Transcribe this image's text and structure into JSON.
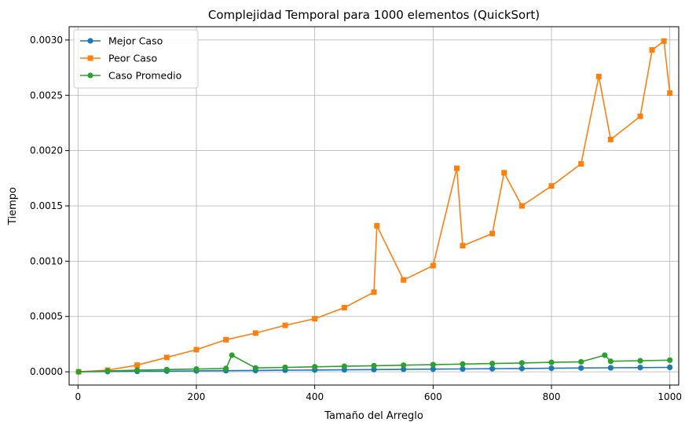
{
  "chart_data": {
    "type": "line",
    "title": "Complejidad Temporal para 1000 elementos (QuickSort)",
    "xlabel": "Tamaño del Arreglo",
    "ylabel": "Tiempo",
    "xlim": [
      -15,
      1015
    ],
    "ylim": [
      -0.00012,
      0.00312
    ],
    "x_ticks": [
      0,
      200,
      400,
      600,
      800,
      1000
    ],
    "x_tick_labels": [
      "0",
      "200",
      "400",
      "600",
      "800",
      "1000"
    ],
    "y_ticks": [
      0,
      0.0005,
      0.001,
      0.0015,
      0.002,
      0.0025,
      0.003
    ],
    "y_tick_labels": [
      "0.0000",
      "0.0005",
      "0.0010",
      "0.0015",
      "0.0020",
      "0.0025",
      "0.0030"
    ],
    "grid": true,
    "legend_position": "top-left",
    "series": [
      {
        "name": "Mejor Caso",
        "color": "#1f77b4",
        "marker": "circle",
        "x": [
          1,
          50,
          100,
          150,
          200,
          250,
          300,
          350,
          400,
          450,
          500,
          550,
          600,
          650,
          700,
          750,
          800,
          850,
          900,
          950,
          1000
        ],
        "values": [
          0.0,
          2e-06,
          4e-06,
          6e-06,
          8e-06,
          1e-05,
          1.2e-05,
          1.4e-05,
          1.6e-05,
          1.8e-05,
          2e-05,
          2.2e-05,
          2.4e-05,
          2.6e-05,
          2.8e-05,
          3e-05,
          3.2e-05,
          3.4e-05,
          3.6e-05,
          3.8e-05,
          4e-05
        ]
      },
      {
        "name": "Peor Caso",
        "color": "#ff7f0e",
        "marker": "square",
        "x": [
          1,
          50,
          100,
          150,
          200,
          250,
          300,
          350,
          400,
          450,
          500,
          505,
          550,
          600,
          640,
          650,
          700,
          720,
          750,
          800,
          850,
          880,
          900,
          950,
          970,
          990,
          1000
        ],
        "values": [
          0.0,
          1.5e-05,
          6e-05,
          0.00013,
          0.0002,
          0.00029,
          0.00035,
          0.00042,
          0.00048,
          0.00058,
          0.00072,
          0.00132,
          0.00083,
          0.00096,
          0.00184,
          0.00114,
          0.00125,
          0.0018,
          0.0015,
          0.00168,
          0.00188,
          0.00267,
          0.0021,
          0.00231,
          0.00291,
          0.00299,
          0.00252
        ]
      },
      {
        "name": "Caso Promedio",
        "color": "#2ca02c",
        "marker": "circle",
        "x": [
          1,
          50,
          100,
          150,
          200,
          250,
          260,
          300,
          350,
          400,
          450,
          500,
          550,
          600,
          650,
          700,
          750,
          800,
          850,
          890,
          900,
          950,
          1000
        ],
        "values": [
          0.0,
          8e-06,
          1.5e-05,
          2e-05,
          2.5e-05,
          3e-05,
          0.00015,
          3.5e-05,
          4e-05,
          4.5e-05,
          5e-05,
          5.5e-05,
          6e-05,
          6.5e-05,
          7e-05,
          7.5e-05,
          8e-05,
          8.5e-05,
          9e-05,
          0.00015,
          9.5e-05,
          0.0001,
          0.000105
        ]
      }
    ]
  }
}
